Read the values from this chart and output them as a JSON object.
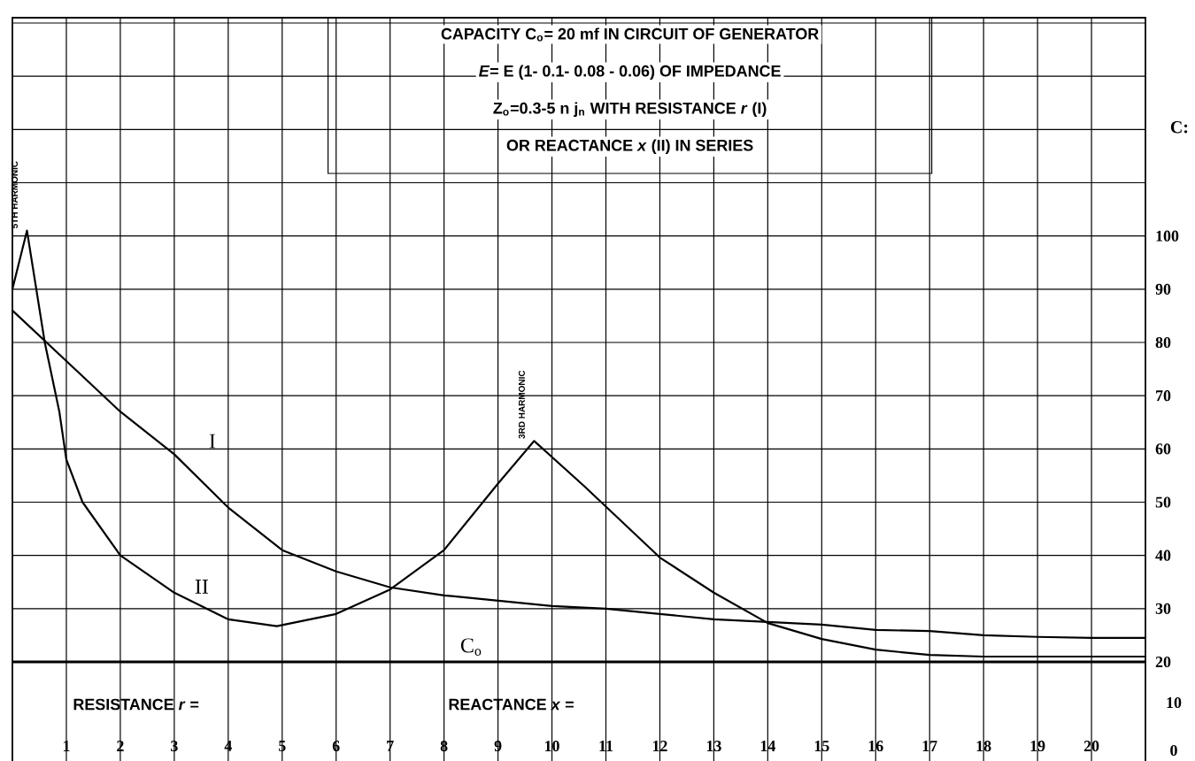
{
  "chart_data": {
    "type": "line",
    "xlim": [
      0,
      21
    ],
    "xticks": [
      1,
      2,
      3,
      4,
      5,
      6,
      7,
      8,
      9,
      10,
      11,
      12,
      13,
      14,
      15,
      16,
      17,
      18,
      19,
      20
    ],
    "ylim": [
      20,
      141
    ],
    "yticks": [
      20,
      30,
      40,
      50,
      60,
      70,
      80,
      90,
      100,
      {
        "value": 110,
        "label": null
      },
      {
        "value": 120,
        "label": null
      },
      {
        "value": 130,
        "label": null
      },
      {
        "value": 140,
        "label": null
      }
    ],
    "ylabel": "C:",
    "grid": true,
    "legend": false,
    "marker": "none",
    "line_style": "solid",
    "series": [
      {
        "name": "I",
        "color": "#000000",
        "x": [
          0,
          1,
          2,
          3,
          4,
          5,
          6,
          7,
          8,
          9,
          10,
          11,
          12,
          13,
          14,
          15,
          16,
          17,
          18,
          19,
          20,
          21
        ],
        "values": [
          86,
          76.5,
          67,
          59,
          49,
          41,
          37,
          34,
          32.5,
          31.5,
          30.5,
          30,
          29,
          28,
          27.5,
          27,
          26,
          25.8,
          25,
          24.7,
          24.5,
          24.5
        ]
      },
      {
        "name": "II",
        "color": "#000000",
        "x": [
          0,
          0.27,
          0.6,
          0.87,
          1,
          1.3,
          2,
          3,
          4,
          4.9,
          6,
          7,
          8,
          9,
          9.67,
          10.6,
          12,
          13,
          14,
          15,
          16,
          17,
          18,
          19,
          20,
          21
        ],
        "values": [
          90,
          101,
          80,
          67,
          58,
          50,
          40,
          33,
          28,
          26.7,
          29,
          33.6,
          41,
          53.5,
          61.5,
          53,
          39.6,
          33,
          27.3,
          24.3,
          22.3,
          21.3,
          21,
          21,
          21,
          21
        ]
      }
    ],
    "ref_lines": [
      {
        "axis": "y",
        "value": 20,
        "label": "C$_{o}$",
        "color": "#000000"
      }
    ],
    "annotations": [
      "CAPACITY C$_{o}$= 20 mf IN CIRCUIT OF GENERATOR",
      "*E*= E (1- 0.1- 0.08 - 0.06) OF IMPEDANCE",
      "Z$_{o}$=0.3-5 n j$_{n}$ WITH RESISTANCE *r* (I)",
      "OR REACTANCE *x* (II) IN SERIES",
      "RESISTANCE *r* =",
      "REACTANCE *x* =",
      "10",
      "0",
      {
        "text": "5TH HARMONIC",
        "x": 0.27,
        "y": 101
      },
      {
        "text": "3RD HARMONIC",
        "x": 9.67,
        "y": 61.5
      }
    ]
  }
}
